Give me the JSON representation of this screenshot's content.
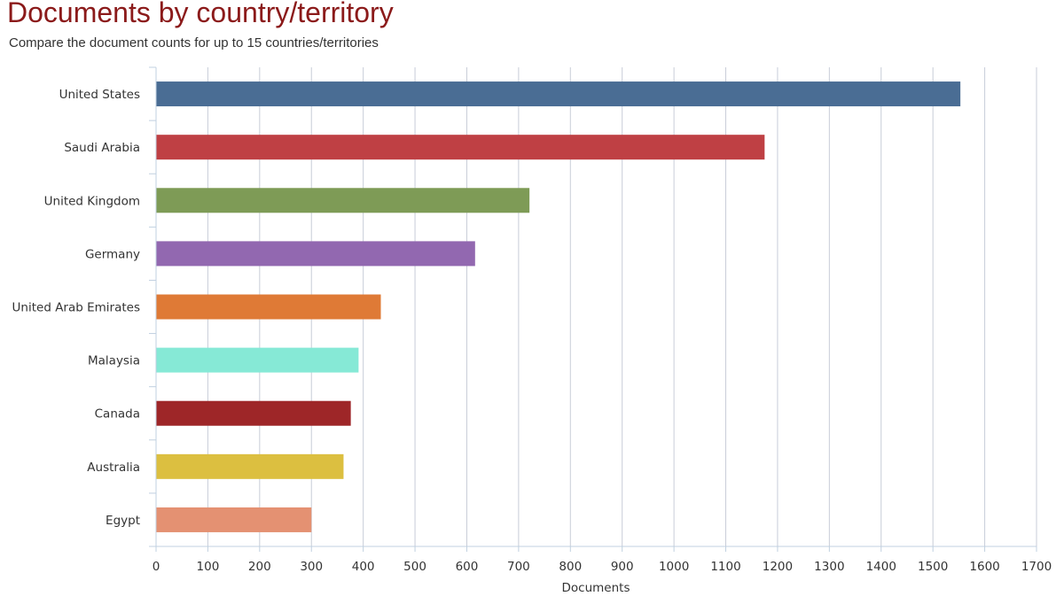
{
  "header": {
    "title": "Documents by country/territory",
    "subtitle": "Compare the document counts for up to 15 countries/territories"
  },
  "chart_data": {
    "type": "bar",
    "orientation": "horizontal",
    "categories": [
      "United States",
      "Saudi Arabia",
      "United Kingdom",
      "Germany",
      "United Arab Emirates",
      "Malaysia",
      "Canada",
      "Australia",
      "Egypt"
    ],
    "values": [
      1553,
      1175,
      721,
      616,
      434,
      391,
      376,
      362,
      300
    ],
    "colors": [
      "#4a6d94",
      "#bf4044",
      "#7e9b56",
      "#9268b0",
      "#df7a36",
      "#86e9d6",
      "#9e2628",
      "#dcbf40",
      "#e49172"
    ],
    "xlabel": "Documents",
    "ylabel": "",
    "xlim": [
      0,
      1700
    ],
    "xticks": [
      0,
      100,
      200,
      300,
      400,
      500,
      600,
      700,
      800,
      900,
      1000,
      1100,
      1200,
      1300,
      1400,
      1500,
      1600,
      1700
    ],
    "grid": "vertical"
  }
}
